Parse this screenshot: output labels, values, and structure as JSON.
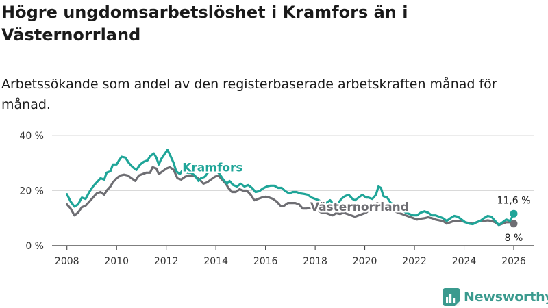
{
  "title": "Högre ungdomsarbetslöshet i Kramfors än i Västernorrland",
  "subtitle": "Arbetssökande som andel av den registerbaserade arbetskraften månad för månad.",
  "brand": {
    "name": "Newsworthy",
    "icon": "bar-chart-logo-icon",
    "color": "#3a9a8e"
  },
  "chart_data": {
    "type": "line",
    "ylim": [
      0,
      40
    ],
    "xlim": [
      2007.4,
      2026.8
    ],
    "yticks": [
      0,
      20,
      40
    ],
    "ytick_labels": [
      "0 %",
      "20 %",
      "40 %"
    ],
    "xticks": [
      2008,
      2010,
      2012,
      2014,
      2016,
      2018,
      2020,
      2022,
      2024,
      2026
    ],
    "xtick_labels": [
      "2008",
      "2010",
      "2012",
      "2014",
      "2016",
      "2018",
      "2020",
      "2022",
      "2024",
      "2026"
    ],
    "grid": true,
    "series": [
      {
        "name": "Kramfors",
        "color": "#1fa598",
        "end_label": "11,6 %",
        "points": [
          [
            2008.0,
            18.7
          ],
          [
            2008.15,
            16.0
          ],
          [
            2008.3,
            14.2
          ],
          [
            2008.45,
            15.0
          ],
          [
            2008.6,
            17.5
          ],
          [
            2008.75,
            17.0
          ],
          [
            2008.9,
            19.5
          ],
          [
            2009.05,
            21.5
          ],
          [
            2009.2,
            23.0
          ],
          [
            2009.35,
            24.5
          ],
          [
            2009.5,
            24.0
          ],
          [
            2009.6,
            26.5
          ],
          [
            2009.75,
            27.0
          ],
          [
            2009.85,
            29.5
          ],
          [
            2010.0,
            29.5
          ],
          [
            2010.1,
            31.0
          ],
          [
            2010.2,
            32.3
          ],
          [
            2010.35,
            32.0
          ],
          [
            2010.5,
            30.0
          ],
          [
            2010.65,
            28.5
          ],
          [
            2010.8,
            27.5
          ],
          [
            2010.95,
            29.5
          ],
          [
            2011.1,
            30.5
          ],
          [
            2011.25,
            31.0
          ],
          [
            2011.35,
            32.5
          ],
          [
            2011.5,
            33.5
          ],
          [
            2011.6,
            32.0
          ],
          [
            2011.7,
            29.5
          ],
          [
            2011.8,
            31.5
          ],
          [
            2011.95,
            33.5
          ],
          [
            2012.05,
            34.8
          ],
          [
            2012.15,
            33.0
          ],
          [
            2012.3,
            30.0
          ],
          [
            2012.4,
            27.0
          ],
          [
            2012.55,
            26.0
          ],
          [
            2012.7,
            28.0
          ],
          [
            2012.85,
            26.5
          ],
          [
            2013.0,
            26.5
          ],
          [
            2013.15,
            25.5
          ],
          [
            2013.3,
            23.5
          ],
          [
            2013.4,
            24.5
          ],
          [
            2013.55,
            25.0
          ],
          [
            2013.7,
            26.8
          ],
          [
            2013.85,
            27.5
          ],
          [
            2014.0,
            27.5
          ],
          [
            2014.15,
            26.0
          ],
          [
            2014.3,
            24.0
          ],
          [
            2014.45,
            22.5
          ],
          [
            2014.55,
            23.5
          ],
          [
            2014.7,
            22.0
          ],
          [
            2014.85,
            21.5
          ],
          [
            2015.0,
            22.5
          ],
          [
            2015.15,
            21.5
          ],
          [
            2015.3,
            22.0
          ],
          [
            2015.45,
            21.0
          ],
          [
            2015.6,
            19.5
          ],
          [
            2015.75,
            19.8
          ],
          [
            2015.9,
            20.8
          ],
          [
            2016.05,
            21.5
          ],
          [
            2016.2,
            21.8
          ],
          [
            2016.35,
            21.8
          ],
          [
            2016.5,
            21.0
          ],
          [
            2016.65,
            21.0
          ],
          [
            2016.8,
            19.8
          ],
          [
            2016.95,
            19.0
          ],
          [
            2017.1,
            19.5
          ],
          [
            2017.25,
            19.5
          ],
          [
            2017.4,
            19.0
          ],
          [
            2017.55,
            18.8
          ],
          [
            2017.7,
            18.5
          ],
          [
            2017.85,
            17.5
          ],
          [
            2018.0,
            17.0
          ],
          [
            2018.15,
            16.5
          ],
          [
            2018.3,
            15.5
          ],
          [
            2018.45,
            15.5
          ],
          [
            2018.6,
            16.5
          ],
          [
            2018.75,
            15.0
          ],
          [
            2018.9,
            15.0
          ],
          [
            2019.05,
            17.0
          ],
          [
            2019.2,
            18.0
          ],
          [
            2019.35,
            18.5
          ],
          [
            2019.5,
            17.0
          ],
          [
            2019.6,
            16.5
          ],
          [
            2019.75,
            17.5
          ],
          [
            2019.9,
            18.5
          ],
          [
            2020.05,
            17.5
          ],
          [
            2020.15,
            17.5
          ],
          [
            2020.3,
            17.0
          ],
          [
            2020.45,
            18.5
          ],
          [
            2020.55,
            21.5
          ],
          [
            2020.65,
            21.0
          ],
          [
            2020.75,
            18.0
          ],
          [
            2020.9,
            17.5
          ],
          [
            2021.05,
            15.5
          ],
          [
            2021.2,
            15.0
          ],
          [
            2021.35,
            13.5
          ],
          [
            2021.5,
            13.0
          ],
          [
            2021.65,
            12.0
          ],
          [
            2021.8,
            11.5
          ],
          [
            2021.95,
            11.0
          ],
          [
            2022.1,
            11.0
          ],
          [
            2022.25,
            12.0
          ],
          [
            2022.4,
            12.5
          ],
          [
            2022.55,
            12.0
          ],
          [
            2022.7,
            11.0
          ],
          [
            2022.85,
            11.0
          ],
          [
            2023.0,
            10.5
          ],
          [
            2023.15,
            10.0
          ],
          [
            2023.3,
            9.0
          ],
          [
            2023.45,
            10.0
          ],
          [
            2023.6,
            10.8
          ],
          [
            2023.75,
            10.5
          ],
          [
            2023.9,
            9.5
          ],
          [
            2024.05,
            8.5
          ],
          [
            2024.2,
            8.0
          ],
          [
            2024.35,
            7.8
          ],
          [
            2024.5,
            8.5
          ],
          [
            2024.65,
            9.0
          ],
          [
            2024.8,
            10.0
          ],
          [
            2024.95,
            10.8
          ],
          [
            2025.1,
            10.5
          ],
          [
            2025.25,
            9.0
          ],
          [
            2025.4,
            7.5
          ],
          [
            2025.55,
            8.5
          ],
          [
            2025.7,
            9.5
          ],
          [
            2025.85,
            9.0
          ],
          [
            2026.0,
            11.6
          ]
        ]
      },
      {
        "name": "Västernorrland",
        "color": "#6e6e73",
        "end_label": "8 %",
        "points": [
          [
            2008.0,
            15.0
          ],
          [
            2008.15,
            13.5
          ],
          [
            2008.3,
            11.0
          ],
          [
            2008.45,
            12.0
          ],
          [
            2008.6,
            14.0
          ],
          [
            2008.75,
            14.5
          ],
          [
            2008.9,
            16.0
          ],
          [
            2009.05,
            17.5
          ],
          [
            2009.2,
            19.0
          ],
          [
            2009.35,
            19.5
          ],
          [
            2009.5,
            18.5
          ],
          [
            2009.6,
            20.0
          ],
          [
            2009.75,
            21.5
          ],
          [
            2009.85,
            23.0
          ],
          [
            2010.0,
            24.5
          ],
          [
            2010.15,
            25.5
          ],
          [
            2010.3,
            25.8
          ],
          [
            2010.45,
            25.5
          ],
          [
            2010.6,
            24.5
          ],
          [
            2010.75,
            23.5
          ],
          [
            2010.9,
            25.5
          ],
          [
            2011.05,
            26.0
          ],
          [
            2011.2,
            26.5
          ],
          [
            2011.35,
            26.5
          ],
          [
            2011.45,
            28.5
          ],
          [
            2011.6,
            28.0
          ],
          [
            2011.7,
            26.0
          ],
          [
            2011.85,
            27.0
          ],
          [
            2012.0,
            28.0
          ],
          [
            2012.15,
            28.5
          ],
          [
            2012.3,
            27.5
          ],
          [
            2012.45,
            24.5
          ],
          [
            2012.6,
            24.0
          ],
          [
            2012.75,
            25.0
          ],
          [
            2012.9,
            25.5
          ],
          [
            2013.05,
            25.5
          ],
          [
            2013.2,
            25.0
          ],
          [
            2013.35,
            24.0
          ],
          [
            2013.5,
            22.5
          ],
          [
            2013.65,
            23.0
          ],
          [
            2013.8,
            24.0
          ],
          [
            2013.95,
            25.0
          ],
          [
            2014.1,
            25.5
          ],
          [
            2014.25,
            24.0
          ],
          [
            2014.4,
            22.5
          ],
          [
            2014.5,
            21.0
          ],
          [
            2014.65,
            19.5
          ],
          [
            2014.8,
            19.5
          ],
          [
            2014.95,
            20.5
          ],
          [
            2015.1,
            20.0
          ],
          [
            2015.25,
            20.0
          ],
          [
            2015.4,
            18.5
          ],
          [
            2015.55,
            16.5
          ],
          [
            2015.7,
            17.0
          ],
          [
            2015.85,
            17.5
          ],
          [
            2016.0,
            17.8
          ],
          [
            2016.15,
            17.5
          ],
          [
            2016.3,
            17.0
          ],
          [
            2016.45,
            16.0
          ],
          [
            2016.6,
            14.5
          ],
          [
            2016.75,
            14.5
          ],
          [
            2016.9,
            15.5
          ],
          [
            2017.05,
            15.5
          ],
          [
            2017.2,
            15.5
          ],
          [
            2017.35,
            15.0
          ],
          [
            2017.5,
            13.5
          ],
          [
            2017.65,
            13.5
          ],
          [
            2017.8,
            13.8
          ],
          [
            2017.95,
            13.5
          ],
          [
            2018.1,
            13.0
          ],
          [
            2018.25,
            12.0
          ],
          [
            2018.4,
            12.0
          ],
          [
            2018.55,
            11.5
          ],
          [
            2018.7,
            11.0
          ],
          [
            2018.85,
            11.8
          ],
          [
            2019.0,
            11.5
          ],
          [
            2019.15,
            12.0
          ],
          [
            2019.3,
            11.5
          ],
          [
            2019.45,
            11.0
          ],
          [
            2019.6,
            10.5
          ],
          [
            2019.75,
            11.0
          ],
          [
            2019.9,
            11.5
          ],
          [
            2020.05,
            12.0
          ],
          [
            2020.2,
            13.0
          ],
          [
            2020.35,
            14.5
          ],
          [
            2020.5,
            15.5
          ],
          [
            2020.6,
            15.0
          ],
          [
            2020.75,
            14.5
          ],
          [
            2020.9,
            13.5
          ],
          [
            2021.05,
            13.0
          ],
          [
            2021.2,
            12.5
          ],
          [
            2021.35,
            12.0
          ],
          [
            2021.5,
            11.5
          ],
          [
            2021.65,
            11.0
          ],
          [
            2021.8,
            10.5
          ],
          [
            2021.95,
            10.0
          ],
          [
            2022.1,
            9.5
          ],
          [
            2022.25,
            9.8
          ],
          [
            2022.4,
            10.0
          ],
          [
            2022.55,
            10.3
          ],
          [
            2022.7,
            10.0
          ],
          [
            2022.85,
            9.5
          ],
          [
            2023.0,
            9.2
          ],
          [
            2023.15,
            9.0
          ],
          [
            2023.3,
            8.0
          ],
          [
            2023.45,
            8.5
          ],
          [
            2023.6,
            9.0
          ],
          [
            2023.75,
            9.0
          ],
          [
            2023.9,
            9.0
          ],
          [
            2024.05,
            8.5
          ],
          [
            2024.2,
            8.2
          ],
          [
            2024.35,
            8.0
          ],
          [
            2024.5,
            8.5
          ],
          [
            2024.65,
            9.0
          ],
          [
            2024.8,
            9.0
          ],
          [
            2024.95,
            9.2
          ],
          [
            2025.1,
            9.0
          ],
          [
            2025.25,
            8.5
          ],
          [
            2025.4,
            7.5
          ],
          [
            2025.55,
            8.0
          ],
          [
            2025.7,
            8.5
          ],
          [
            2025.85,
            8.5
          ],
          [
            2026.0,
            8.0
          ]
        ]
      }
    ]
  }
}
